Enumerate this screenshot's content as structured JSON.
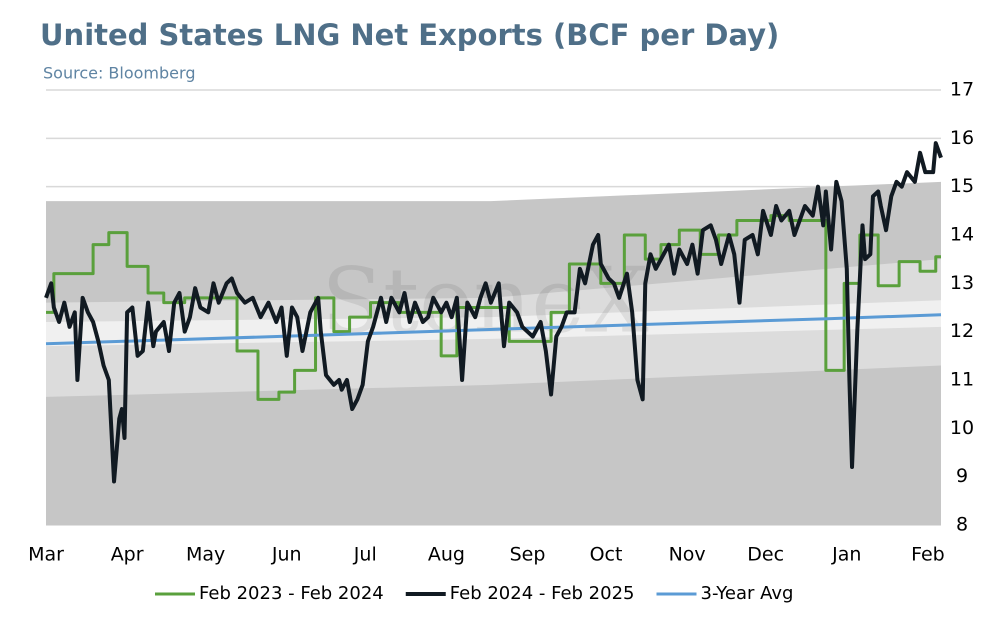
{
  "chart_data": {
    "type": "line",
    "title": "United States LNG Net Exports (BCF per Day)",
    "subtitle": "Source: Bloomberg",
    "watermark": "StoneX",
    "xlim": [
      0,
      342
    ],
    "xticks": [
      {
        "value": 0,
        "label": "Mar"
      },
      {
        "value": 31,
        "label": "Apr"
      },
      {
        "value": 61,
        "label": "May"
      },
      {
        "value": 92,
        "label": "Jun"
      },
      {
        "value": 122,
        "label": "Jul"
      },
      {
        "value": 153,
        "label": "Aug"
      },
      {
        "value": 184,
        "label": "Sep"
      },
      {
        "value": 214,
        "label": "Oct"
      },
      {
        "value": 245,
        "label": "Nov"
      },
      {
        "value": 275,
        "label": "Dec"
      },
      {
        "value": 306,
        "label": "Jan"
      },
      {
        "value": 337,
        "label": "Feb"
      }
    ],
    "ylim": [
      8,
      17
    ],
    "yticks": [
      8,
      9,
      10,
      11,
      12,
      13,
      14,
      15,
      16,
      17
    ],
    "grid": true,
    "legend": "bottom",
    "bands": [
      {
        "color": "#c6c6c6",
        "x": [
          0,
          170,
          342
        ],
        "upper": [
          14.7,
          14.7,
          15.1
        ],
        "lower": [
          8,
          8,
          8
        ]
      },
      {
        "color": "#dcdcdc",
        "x": [
          0,
          170,
          342
        ],
        "upper": [
          12.6,
          12.7,
          13.5
        ],
        "lower": [
          10.65,
          10.9,
          11.3
        ]
      },
      {
        "color": "#f0f0f0",
        "x": [
          0,
          170,
          342
        ],
        "upper": [
          12.2,
          12.3,
          12.65
        ],
        "lower": [
          11.7,
          11.85,
          12.1
        ]
      }
    ],
    "series": [
      {
        "name": "Feb 2023 - Feb 2024",
        "color": "#5aa03c",
        "step": true,
        "x": [
          0,
          3,
          18,
          24,
          31,
          39,
          45,
          53,
          73,
          81,
          89,
          95,
          103,
          110,
          116,
          124,
          135,
          151,
          157,
          177,
          193,
          200,
          212,
          221,
          229,
          235,
          242,
          250,
          257,
          264,
          277,
          284,
          298,
          305,
          311,
          318,
          326,
          334,
          340,
          342
        ],
        "values": [
          12.4,
          13.2,
          13.8,
          14.05,
          13.35,
          12.8,
          12.6,
          12.7,
          11.6,
          10.6,
          10.75,
          11.2,
          12.7,
          12.0,
          12.3,
          12.6,
          12.4,
          11.5,
          12.5,
          11.8,
          12.4,
          13.4,
          13.0,
          14.0,
          13.5,
          13.8,
          14.1,
          13.6,
          14.0,
          14.3,
          14.4,
          14.3,
          11.2,
          13.0,
          14.0,
          12.95,
          13.45,
          13.25,
          13.55,
          13.55
        ]
      },
      {
        "name": "Feb 2024 - Feb 2025",
        "color": "#111a22",
        "x": [
          0,
          2,
          3,
          5,
          7,
          9,
          11,
          12,
          14,
          16,
          18,
          20,
          22,
          24,
          26,
          28,
          29,
          30,
          31,
          33,
          35,
          37,
          39,
          41,
          42,
          45,
          47,
          49,
          51,
          53,
          55,
          57,
          59,
          62,
          64,
          66,
          69,
          71,
          73,
          76,
          79,
          82,
          85,
          88,
          90,
          92,
          94,
          96,
          98,
          101,
          104,
          105,
          107,
          110,
          112,
          113,
          115,
          117,
          119,
          121,
          123,
          125,
          128,
          130,
          132,
          135,
          137,
          139,
          141,
          144,
          146,
          148,
          151,
          153,
          155,
          157,
          159,
          161,
          164,
          166,
          168,
          170,
          173,
          175,
          177,
          180,
          182,
          184,
          186,
          189,
          191,
          193,
          195,
          197,
          199,
          202,
          204,
          206,
          209,
          211,
          212,
          215,
          217,
          219,
          222,
          224,
          226,
          228,
          229,
          231,
          233,
          235,
          238,
          240,
          242,
          245,
          247,
          249,
          251,
          254,
          256,
          258,
          261,
          263,
          265,
          267,
          270,
          272,
          274,
          277,
          279,
          281,
          284,
          286,
          288,
          290,
          293,
          295,
          297,
          298,
          300,
          302,
          304,
          306,
          307,
          308,
          310,
          312,
          313,
          315,
          316,
          318,
          319,
          321,
          323,
          325,
          327,
          329,
          332,
          334,
          336,
          339,
          340,
          342
        ],
        "values": [
          12.7,
          13.0,
          12.5,
          12.2,
          12.6,
          12.1,
          12.4,
          11.0,
          12.7,
          12.4,
          12.2,
          11.8,
          11.3,
          11.0,
          8.9,
          10.2,
          10.4,
          9.8,
          12.4,
          12.5,
          11.5,
          11.6,
          12.6,
          11.7,
          12.0,
          12.2,
          11.6,
          12.6,
          12.8,
          12.0,
          12.3,
          12.9,
          12.5,
          12.4,
          13.0,
          12.6,
          13.0,
          13.1,
          12.8,
          12.6,
          12.7,
          12.3,
          12.6,
          12.2,
          12.5,
          11.5,
          12.5,
          12.3,
          11.6,
          12.4,
          12.7,
          12.0,
          11.1,
          10.9,
          11.0,
          10.8,
          11.0,
          10.4,
          10.6,
          10.9,
          11.8,
          12.1,
          12.7,
          12.2,
          12.7,
          12.4,
          12.8,
          12.2,
          12.6,
          12.2,
          12.3,
          12.7,
          12.4,
          12.6,
          12.3,
          12.7,
          11.0,
          12.6,
          12.3,
          12.7,
          13.0,
          12.6,
          13.0,
          11.7,
          12.6,
          12.4,
          12.1,
          12.0,
          11.9,
          12.2,
          11.6,
          10.7,
          11.9,
          12.1,
          12.4,
          12.4,
          13.3,
          13.0,
          13.8,
          14.0,
          13.4,
          13.1,
          13.0,
          12.7,
          13.2,
          12.4,
          11.0,
          10.6,
          13.0,
          13.6,
          13.3,
          13.5,
          13.8,
          13.2,
          13.7,
          13.4,
          13.8,
          13.2,
          14.1,
          14.2,
          13.9,
          13.4,
          14.0,
          13.6,
          12.6,
          13.9,
          14.0,
          13.6,
          14.5,
          14.0,
          14.6,
          14.3,
          14.5,
          14.0,
          14.3,
          14.6,
          14.4,
          15.0,
          14.2,
          14.9,
          13.7,
          15.1,
          14.7,
          13.3,
          11.0,
          9.2,
          12.0,
          14.2,
          13.5,
          13.6,
          14.8,
          14.9,
          14.6,
          14.1,
          14.8,
          15.1,
          15.0,
          15.3,
          15.1,
          15.7,
          15.3,
          15.3,
          15.9,
          15.6
        ]
      },
      {
        "name": "3-Year Avg",
        "color": "#5b9bd5",
        "x": [
          0,
          100,
          200,
          300,
          342
        ],
        "values": [
          11.75,
          11.92,
          12.1,
          12.27,
          12.35
        ]
      }
    ]
  }
}
